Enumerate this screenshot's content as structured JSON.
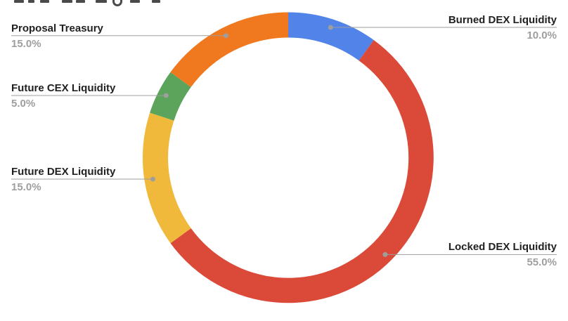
{
  "chart_data": {
    "type": "pie",
    "style": "donut",
    "direction": "clockwise",
    "start_angle_deg": 0,
    "legend_position": "labeled-callouts",
    "background_color": "#ffffff",
    "callout_line_color": "#9e9e9e",
    "label_text_color": "#212121",
    "pct_text_color": "#9e9e9e",
    "slices": [
      {
        "label": "Burned DEX Liquidity",
        "value": 10,
        "pct": "10.0%",
        "color": "#5183E8",
        "label_side": "right"
      },
      {
        "label": "Locked DEX Liquidity",
        "value": 55,
        "pct": "55.0%",
        "color": "#DB4A38",
        "label_side": "right"
      },
      {
        "label": "Future DEX Liquidity",
        "value": 15,
        "pct": "15.0%",
        "color": "#F0B93B",
        "label_side": "left"
      },
      {
        "label": "Future CEX Liquidity",
        "value": 5,
        "pct": "5.0%",
        "color": "#5CA45C",
        "label_side": "left"
      },
      {
        "label": "Proposal Treasury",
        "value": 15,
        "pct": "15.0%",
        "color": "#F0781E",
        "label_side": "left"
      }
    ]
  }
}
